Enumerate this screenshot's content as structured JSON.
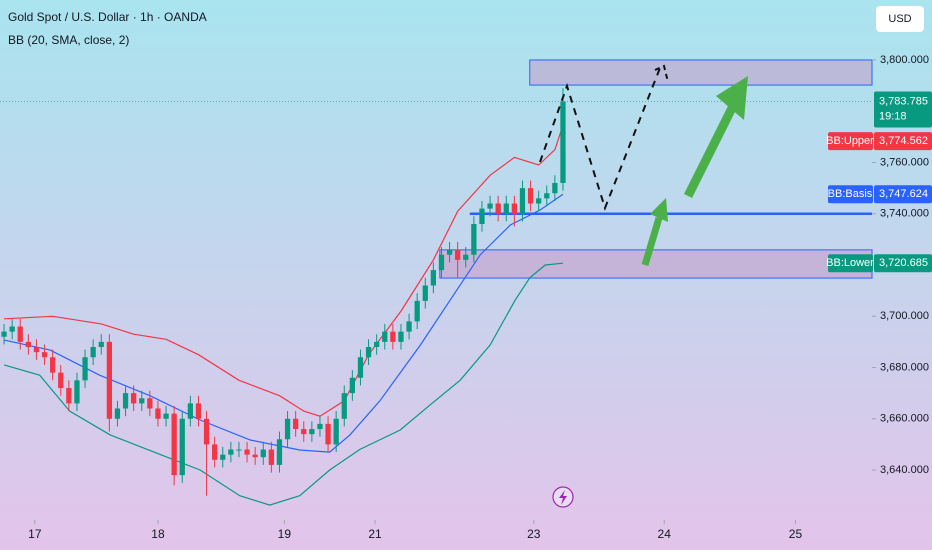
{
  "chart_data": {
    "type": "candlestick",
    "title": "Gold Spot / U.S. Dollar · 1h · OANDA",
    "subtitle": "BB (20, SMA, close, 2)",
    "currency": "USD",
    "up_color": "#089981",
    "down_color": "#f23645",
    "xlim": [
      -0.5,
      107.15
    ],
    "xticks": [
      {
        "value": 3.8,
        "label": "17"
      },
      {
        "value": 19.0,
        "label": "18"
      },
      {
        "value": 34.6,
        "label": "19"
      },
      {
        "value": 45.8,
        "label": "21"
      },
      {
        "value": 65.4,
        "label": "23"
      },
      {
        "value": 81.5,
        "label": "24"
      },
      {
        "value": 97.7,
        "label": "25"
      }
    ],
    "ylim": [
      3620.5,
      3823.4
    ],
    "yticks": [
      {
        "value": 3800,
        "label": "3,800.000"
      },
      {
        "value": 3760,
        "label": "3,760.000"
      },
      {
        "value": 3740,
        "label": "3,740.000"
      },
      {
        "value": 3700,
        "label": "3,700.000"
      },
      {
        "value": 3680,
        "label": "3,680.000"
      },
      {
        "value": 3660,
        "label": "3,660.000"
      },
      {
        "value": 3640,
        "label": "3,640.000"
      }
    ],
    "grid": false,
    "open": [
      3692,
      3694,
      3696,
      3690,
      3688,
      3686,
      3684,
      3678,
      3672,
      3666,
      3675,
      3684,
      3688,
      3690,
      3660,
      3664,
      3670,
      3666,
      3668,
      3664,
      3660,
      3662,
      3638,
      3660,
      3666,
      3660,
      3650,
      3644,
      3646,
      3648,
      3648,
      3646,
      3645,
      3648,
      3642,
      3652,
      3660,
      3656,
      3654,
      3656,
      3658,
      3650,
      3660,
      3670,
      3676,
      3684,
      3688,
      3690,
      3694,
      3690,
      3694,
      3698,
      3706,
      3712,
      3718,
      3724,
      3726,
      3722,
      3724,
      3736,
      3742,
      3744,
      3740,
      3744,
      3740,
      3750,
      3744,
      3746,
      3748,
      3752
    ],
    "high": [
      3697,
      3699,
      3699,
      3693,
      3691,
      3689,
      3687,
      3681,
      3675,
      3678,
      3687,
      3691,
      3693,
      3693,
      3667,
      3673,
      3673,
      3671,
      3671,
      3667,
      3665,
      3665,
      3663,
      3669,
      3669,
      3663,
      3653,
      3649,
      3651,
      3651,
      3651,
      3649,
      3651,
      3651,
      3655,
      3663,
      3663,
      3659,
      3659,
      3661,
      3661,
      3663,
      3673,
      3679,
      3687,
      3691,
      3693,
      3697,
      3697,
      3697,
      3701,
      3709,
      3715,
      3721,
      3727,
      3729,
      3729,
      3727,
      3739,
      3745,
      3747,
      3747,
      3747,
      3747,
      3753,
      3753,
      3749,
      3751,
      3755,
      3789
    ],
    "low": [
      3689,
      3691,
      3687,
      3685,
      3683,
      3681,
      3675,
      3669,
      3663,
      3663,
      3672,
      3681,
      3685,
      3655,
      3657,
      3661,
      3663,
      3663,
      3661,
      3657,
      3657,
      3634,
      3635,
      3657,
      3657,
      3630,
      3641,
      3641,
      3643,
      3645,
      3643,
      3642,
      3642,
      3639,
      3639,
      3649,
      3653,
      3651,
      3651,
      3653,
      3647,
      3647,
      3657,
      3667,
      3673,
      3681,
      3685,
      3687,
      3687,
      3687,
      3691,
      3695,
      3703,
      3709,
      3715,
      3721,
      3715,
      3719,
      3721,
      3733,
      3739,
      3737,
      3737,
      3735,
      3737,
      3741,
      3741,
      3743,
      3745,
      3749
    ],
    "close": [
      3694,
      3696,
      3690,
      3688,
      3686,
      3684,
      3678,
      3672,
      3666,
      3675,
      3684,
      3688,
      3690,
      3660,
      3664,
      3670,
      3666,
      3668,
      3664,
      3660,
      3662,
      3638,
      3660,
      3666,
      3660,
      3650,
      3644,
      3646,
      3648,
      3648,
      3646,
      3645,
      3648,
      3642,
      3652,
      3660,
      3656,
      3654,
      3656,
      3658,
      3650,
      3660,
      3670,
      3676,
      3684,
      3688,
      3690,
      3694,
      3690,
      3694,
      3698,
      3706,
      3712,
      3718,
      3724,
      3726,
      3722,
      3724,
      3736,
      3742,
      3744,
      3740,
      3744,
      3740,
      3750,
      3744,
      3746,
      3748,
      3752,
      3783.785
    ],
    "price_badge": {
      "value": 3783.785,
      "label": "3,783.785",
      "countdown": "19:18",
      "color": "#089981"
    },
    "series": [
      {
        "name": "BB:Upper",
        "color": "#f23645",
        "last_label": "3,774.562",
        "x": [
          0,
          6,
          12,
          16,
          20,
          24,
          29,
          34,
          37,
          39,
          42,
          45,
          49,
          53,
          56,
          60,
          63,
          66,
          68,
          69
        ],
        "values": [
          3699,
          3700,
          3697,
          3693,
          3691,
          3685,
          3675,
          3669,
          3663,
          3661,
          3667,
          3685,
          3702,
          3722,
          3741,
          3755,
          3762,
          3759,
          3765,
          3774.562
        ]
      },
      {
        "name": "BB:Basis",
        "color": "#2962ff",
        "last_label": "3,747.624",
        "x": [
          0,
          5.7,
          11.8,
          18,
          24.2,
          30.4,
          36.5,
          40.2,
          42.7,
          46.4,
          51.4,
          55,
          58.8,
          62.5,
          66.2,
          69
        ],
        "values": [
          3690.7,
          3686.8,
          3677,
          3669,
          3659.5,
          3651.7,
          3647.8,
          3647,
          3653.7,
          3667,
          3688.8,
          3706,
          3724,
          3735.6,
          3741.5,
          3747.624
        ]
      },
      {
        "name": "BB:Lower",
        "color": "#089981",
        "last_label": "3,720.685",
        "x": [
          0,
          4.4,
          8.1,
          13.1,
          19.3,
          24.2,
          29.1,
          32.8,
          36.5,
          40.2,
          43.9,
          48.9,
          52.6,
          56.3,
          60,
          63.1,
          64.9,
          66.8,
          69
        ],
        "values": [
          3681,
          3677,
          3663,
          3653.7,
          3646,
          3640,
          3630,
          3626.3,
          3630,
          3640,
          3648,
          3655.6,
          3665.4,
          3675,
          3688.8,
          3706.3,
          3715,
          3720,
          3720.685
        ]
      }
    ],
    "zones": [
      {
        "from": 3790.2,
        "to": 3800,
        "x_start": 64.9
      },
      {
        "from": 3714.9,
        "to": 3725.9,
        "x_start": 53.8
      }
    ],
    "level": {
      "value": 3740,
      "x_start": 57.5
    }
  }
}
